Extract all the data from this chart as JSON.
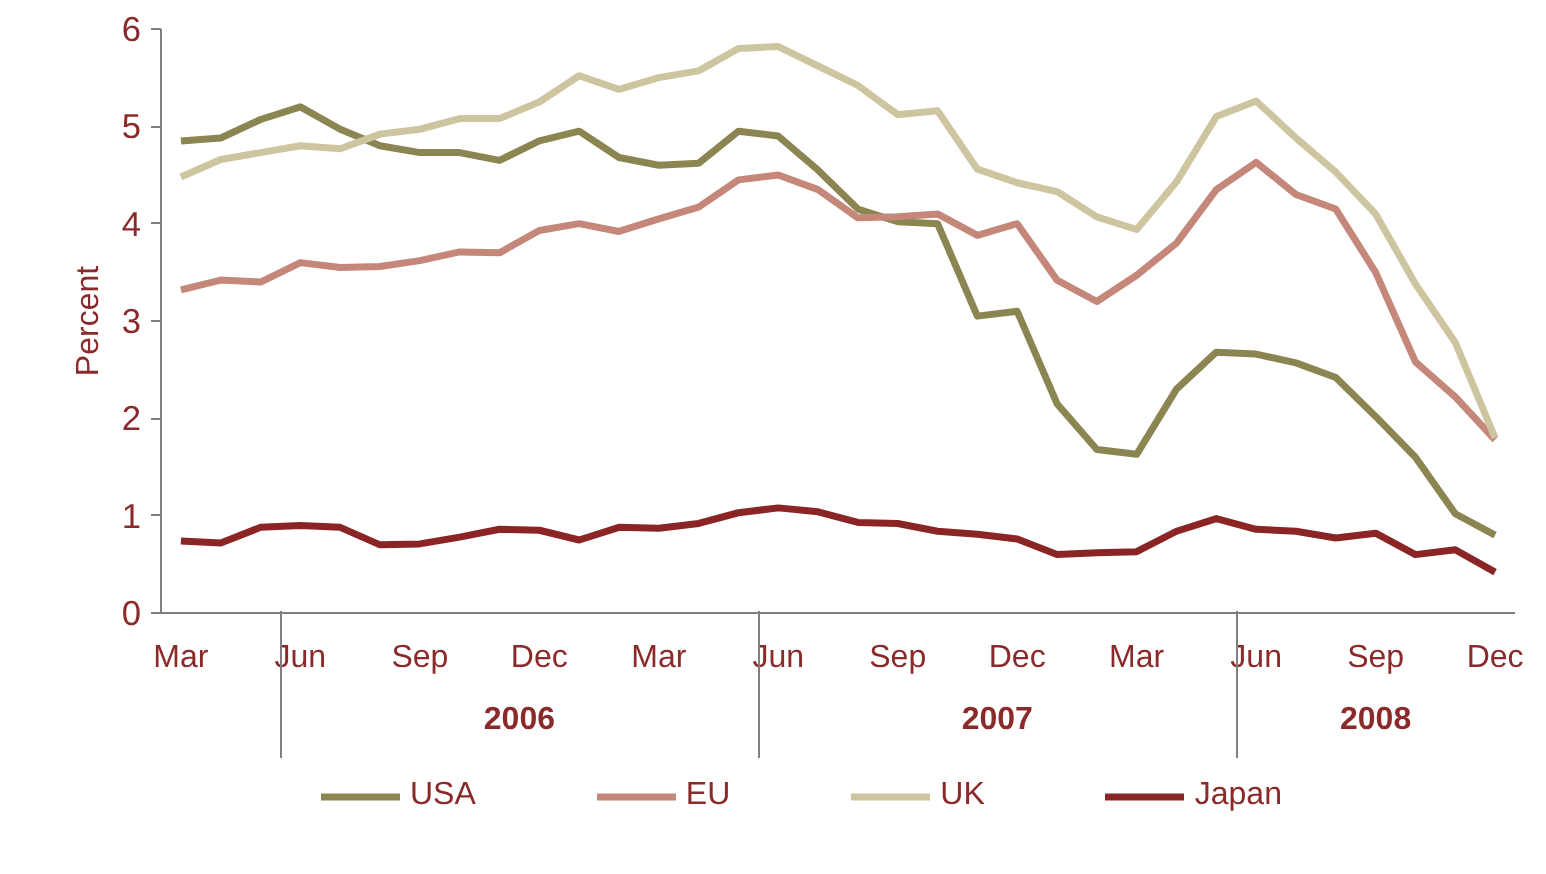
{
  "chart_data": {
    "type": "line",
    "ylabel": "Percent",
    "categories": [
      "Mar",
      null,
      null,
      "Jun",
      null,
      null,
      "Sep",
      null,
      null,
      "Dec",
      null,
      null,
      "Mar",
      null,
      null,
      "Jun",
      null,
      null,
      "Sep",
      null,
      null,
      "Dec",
      null,
      null,
      "Mar",
      null,
      null,
      "Jun",
      null,
      null,
      "Sep",
      null,
      null,
      "Dec"
    ],
    "ylim": [
      0,
      6
    ],
    "yticks": [
      0,
      1,
      2,
      3,
      4,
      5,
      6
    ],
    "grid": false,
    "legend": "bottom",
    "line_style": "solid",
    "annotations": [
      "2006",
      "2007",
      "2008"
    ],
    "series": [
      {
        "name": "USA",
        "color": "#8b8552",
        "values": [
          4.85,
          4.88,
          5.07,
          5.2,
          4.97,
          4.8,
          4.73,
          4.73,
          4.65,
          4.85,
          4.95,
          4.68,
          4.6,
          4.62,
          4.95,
          4.9,
          4.55,
          4.15,
          4.02,
          4.0,
          3.05,
          3.1,
          2.15,
          1.68,
          1.63,
          2.3,
          2.68,
          2.66,
          2.57,
          2.42,
          2.02,
          1.6,
          1.02,
          0.8
        ]
      },
      {
        "name": "EU",
        "color": "#c4877a",
        "values": [
          3.32,
          3.42,
          3.4,
          3.6,
          3.55,
          3.56,
          3.62,
          3.71,
          3.7,
          3.93,
          4.0,
          3.92,
          4.05,
          4.17,
          4.45,
          4.5,
          4.35,
          4.06,
          4.07,
          4.1,
          3.88,
          4.0,
          3.42,
          3.2,
          3.47,
          3.8,
          4.35,
          4.63,
          4.3,
          4.15,
          3.5,
          2.58,
          2.22,
          1.78
        ]
      },
      {
        "name": "UK",
        "color": "#cdc5a0",
        "values": [
          4.48,
          4.66,
          4.73,
          4.8,
          4.77,
          4.92,
          4.97,
          5.08,
          5.08,
          5.25,
          5.52,
          5.38,
          5.5,
          5.57,
          5.8,
          5.82,
          5.62,
          5.42,
          5.12,
          5.16,
          4.56,
          4.42,
          4.33,
          4.07,
          3.94,
          4.43,
          5.1,
          5.26,
          4.88,
          4.53,
          4.1,
          3.38,
          2.78,
          1.8
        ]
      },
      {
        "name": "Japan",
        "color": "#8b2525",
        "values": [
          0.74,
          0.72,
          0.88,
          0.9,
          0.88,
          0.7,
          0.71,
          0.78,
          0.86,
          0.85,
          0.75,
          0.88,
          0.87,
          0.92,
          1.03,
          1.08,
          1.04,
          0.93,
          0.92,
          0.84,
          0.81,
          0.76,
          0.6,
          0.62,
          0.63,
          0.84,
          0.97,
          0.86,
          0.84,
          0.77,
          0.82,
          0.6,
          0.65,
          0.42
        ]
      }
    ]
  }
}
